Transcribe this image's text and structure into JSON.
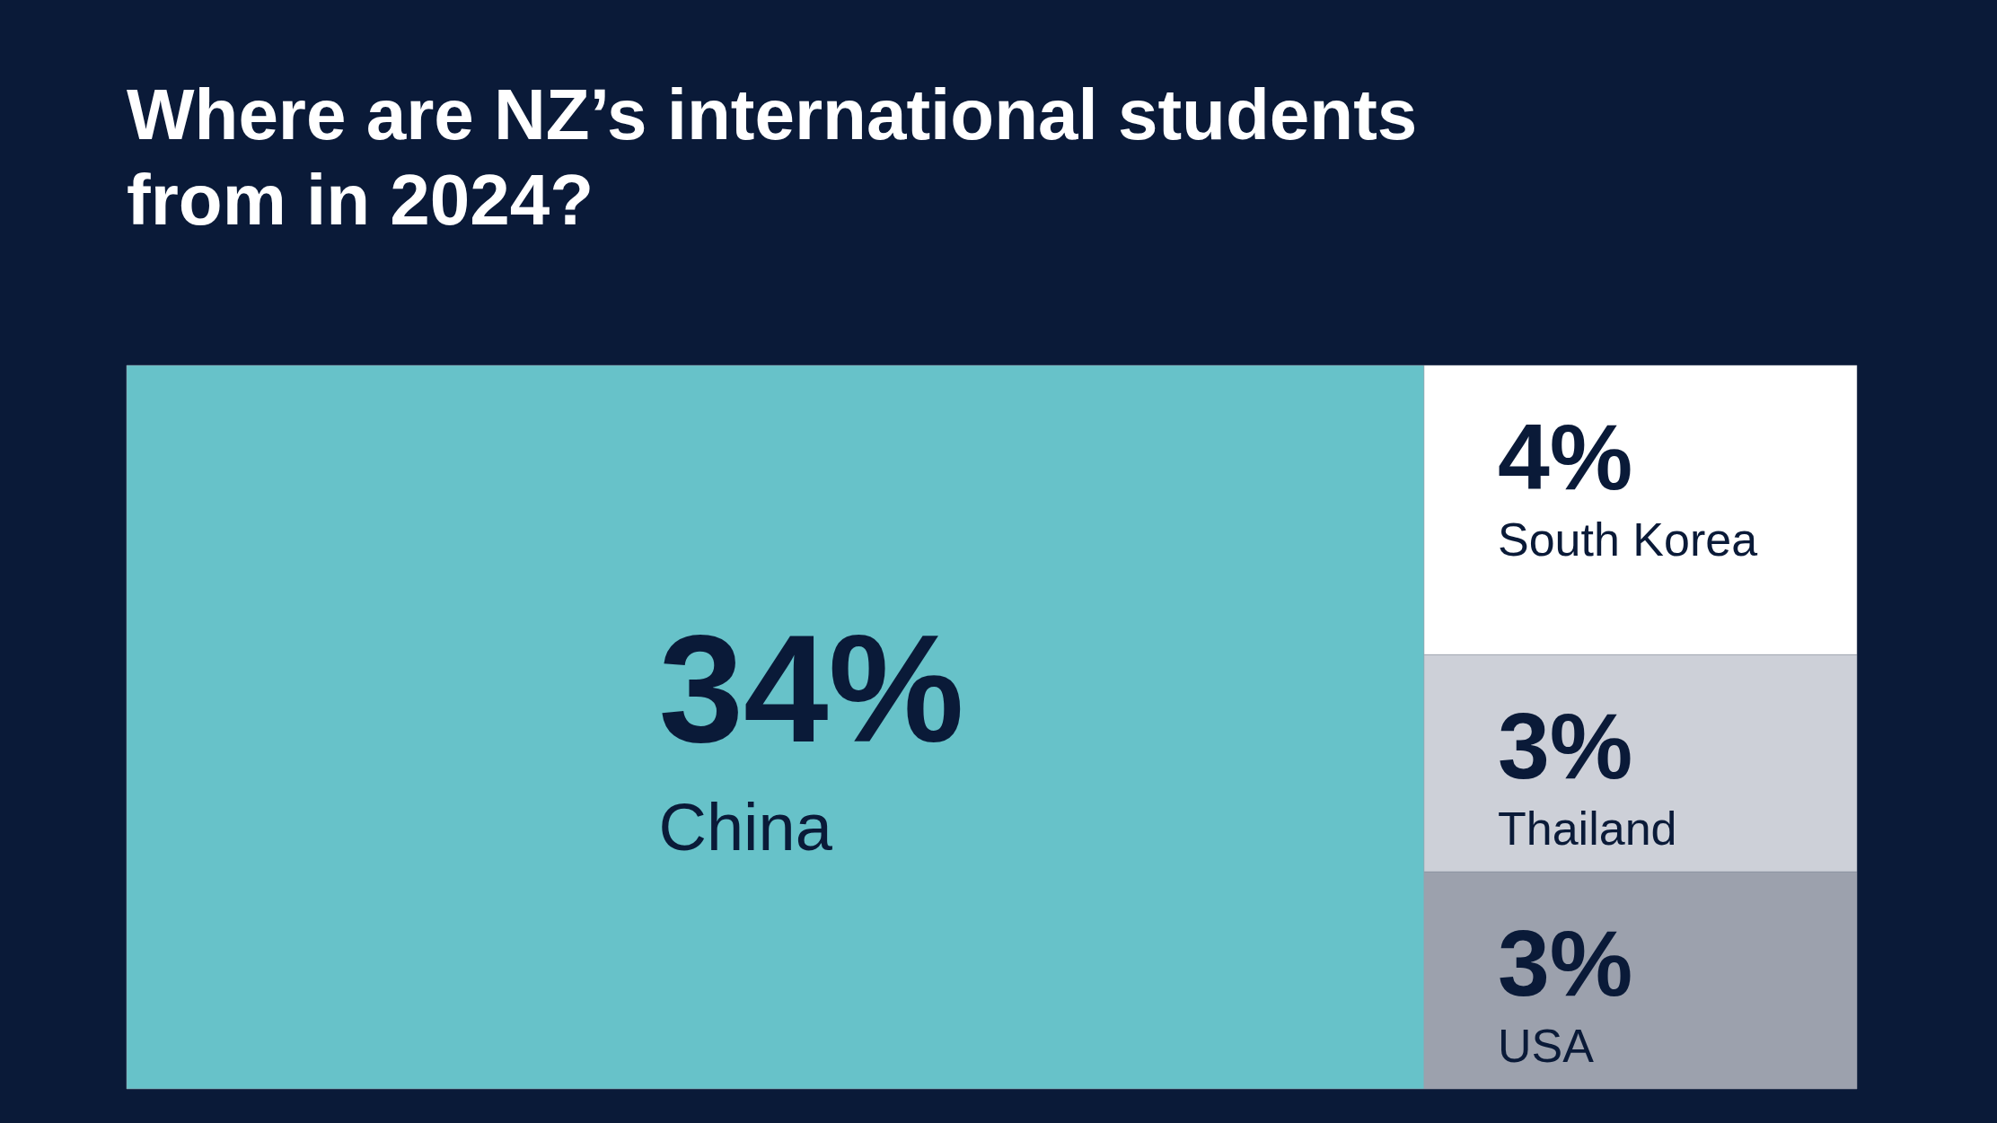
{
  "chart_data": {
    "type": "other",
    "title": "Where are NZ’s international students from in 2024?",
    "categories": [
      "China",
      "South Korea",
      "Thailand",
      "USA"
    ],
    "values": [
      34,
      4,
      3,
      3
    ],
    "value_labels": [
      "34%",
      "4%",
      "3%",
      "3%"
    ],
    "colors": [
      "#67c2c9",
      "#ffffff",
      "#cdd0d8",
      "#9ca1ad"
    ]
  }
}
